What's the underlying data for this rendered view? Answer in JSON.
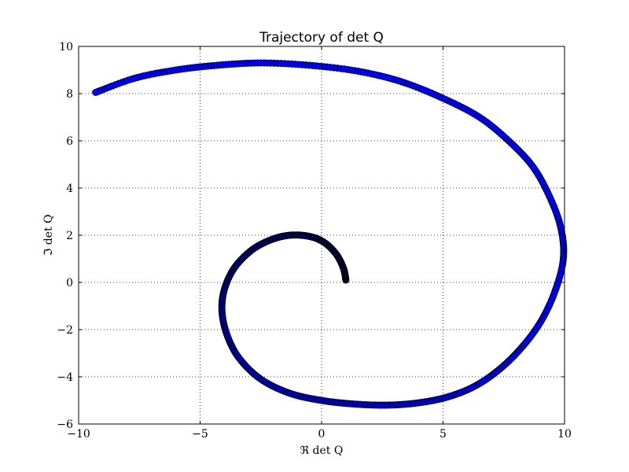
{
  "chart_data": {
    "type": "scatter",
    "title": "Trajectory of det Q",
    "xlabel": "ℜ det Q",
    "ylabel": "ℑ det Q",
    "xlim": [
      -10,
      10
    ],
    "ylim": [
      -6,
      10
    ],
    "xticks": [
      -10,
      -5,
      0,
      5,
      10
    ],
    "yticks": [
      -6,
      -4,
      -2,
      0,
      2,
      4,
      6,
      8,
      10
    ],
    "xtick_labels": [
      "−10",
      "−5",
      "0",
      "5",
      "10"
    ],
    "ytick_labels": [
      "−6",
      "−4",
      "−2",
      "0",
      "2",
      "4",
      "6",
      "8",
      "10"
    ],
    "grid": true,
    "marker": "circle",
    "color_start": "#000033",
    "color_end": "#0000ff",
    "series": [
      {
        "points": [
          [
            1.0,
            0.1
          ],
          [
            0.9,
            0.6
          ],
          [
            0.6,
            1.2
          ],
          [
            0.1,
            1.7
          ],
          [
            -0.5,
            1.95
          ],
          [
            -1.3,
            2.0
          ],
          [
            -2.1,
            1.8
          ],
          [
            -2.9,
            1.35
          ],
          [
            -3.6,
            0.6
          ],
          [
            -4.0,
            -0.3
          ],
          [
            -4.1,
            -1.2
          ],
          [
            -3.9,
            -2.2
          ],
          [
            -3.4,
            -3.2
          ],
          [
            -2.5,
            -4.1
          ],
          [
            -1.3,
            -4.7
          ],
          [
            0.0,
            -5.0
          ],
          [
            1.3,
            -5.15
          ],
          [
            2.7,
            -5.2
          ],
          [
            4.0,
            -5.1
          ],
          [
            5.2,
            -4.85
          ],
          [
            6.3,
            -4.4
          ],
          [
            7.3,
            -3.7
          ],
          [
            8.2,
            -2.8
          ],
          [
            9.0,
            -1.7
          ],
          [
            9.6,
            -0.4
          ],
          [
            9.95,
            1.0
          ],
          [
            9.85,
            2.3
          ],
          [
            9.4,
            3.6
          ],
          [
            8.7,
            4.9
          ],
          [
            7.7,
            6.0
          ],
          [
            6.5,
            7.0
          ],
          [
            5.0,
            7.8
          ],
          [
            3.3,
            8.5
          ],
          [
            1.5,
            8.95
          ],
          [
            -0.5,
            9.2
          ],
          [
            -2.5,
            9.3
          ],
          [
            -4.3,
            9.2
          ],
          [
            -6.0,
            9.0
          ],
          [
            -7.7,
            8.65
          ],
          [
            -9.3,
            8.05
          ]
        ]
      }
    ]
  }
}
